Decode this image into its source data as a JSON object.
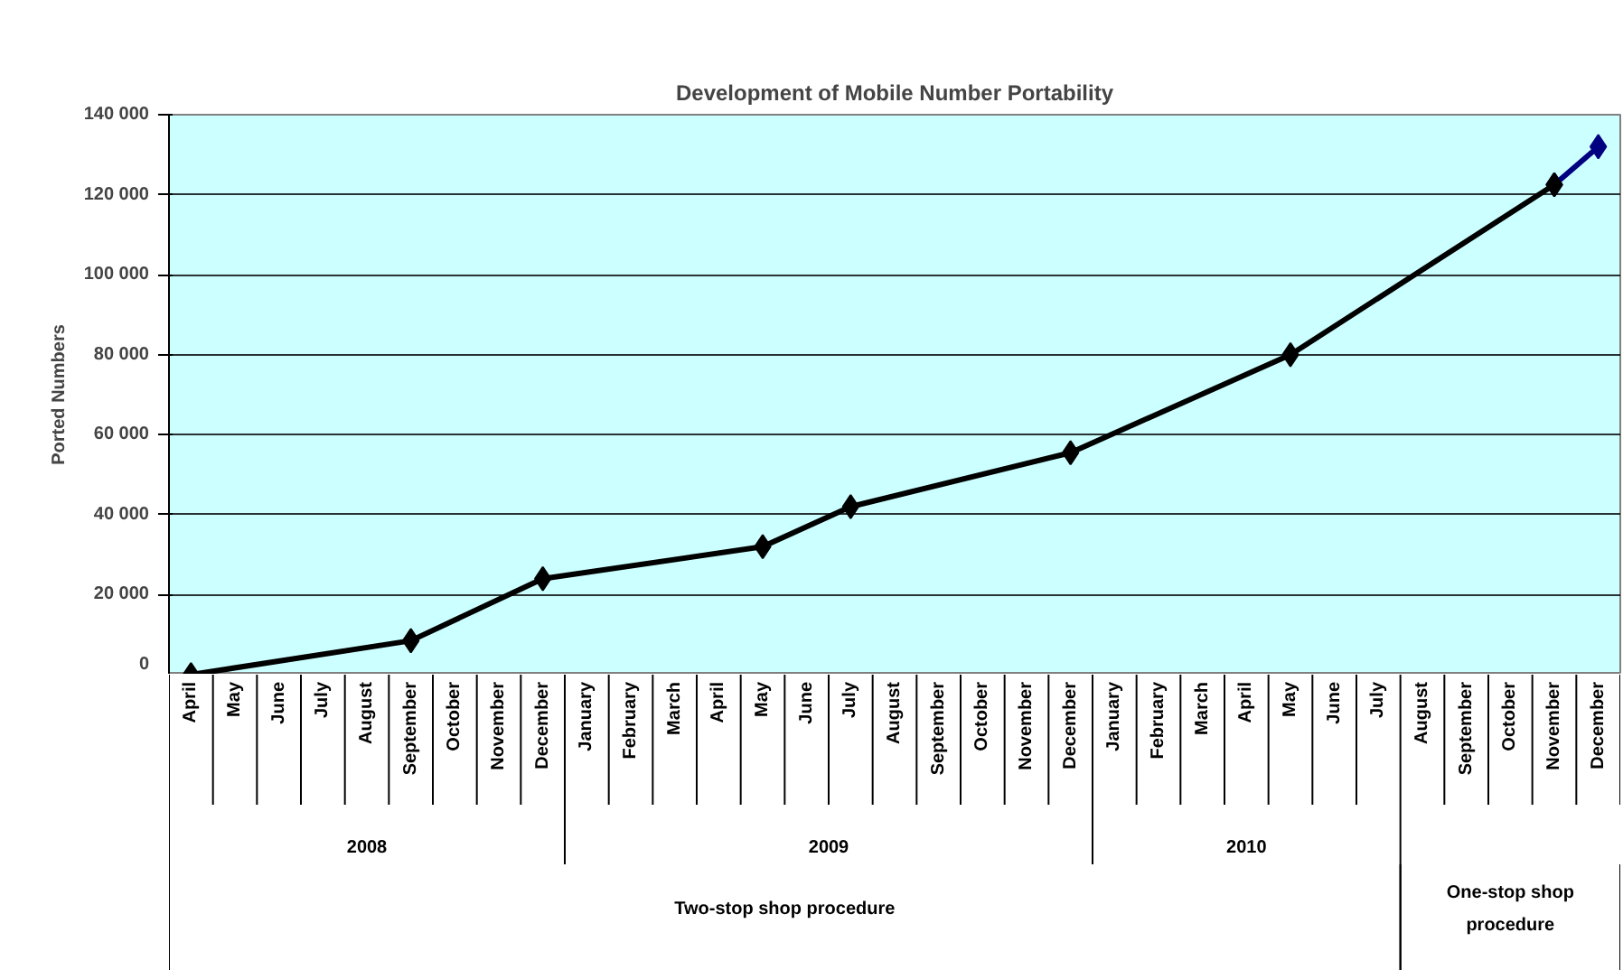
{
  "chart_data": {
    "type": "line",
    "title": "Development of Mobile Number Portability",
    "ylabel": "Ported Numbers",
    "categories": [
      "April",
      "May",
      "June",
      "July",
      "August",
      "September",
      "October",
      "November",
      "December",
      "January",
      "February",
      "March",
      "April",
      "May",
      "June",
      "July",
      "August",
      "September",
      "October",
      "November",
      "December",
      "January",
      "February",
      "March",
      "April",
      "May",
      "June",
      "July",
      "August",
      "September",
      "October",
      "November",
      "December"
    ],
    "series": [
      {
        "color": "#000000",
        "values": [
          0,
          null,
          null,
          null,
          null,
          8500,
          null,
          null,
          24000,
          null,
          null,
          null,
          null,
          32000,
          null,
          42000,
          null,
          null,
          null,
          null,
          55500,
          null,
          null,
          null,
          null,
          80000,
          null,
          null,
          null,
          null,
          null,
          122500,
          null
        ]
      },
      {
        "color": "#000080",
        "values": [
          null,
          null,
          null,
          null,
          null,
          null,
          null,
          null,
          null,
          null,
          null,
          null,
          null,
          null,
          null,
          null,
          null,
          null,
          null,
          null,
          null,
          null,
          null,
          null,
          null,
          null,
          null,
          null,
          null,
          null,
          null,
          122500,
          132000
        ]
      }
    ],
    "ylim": [
      0,
      140000
    ],
    "yticks": [
      0,
      {
        "value": 20000,
        "label": "20 000"
      },
      {
        "value": 40000,
        "label": "40 000"
      },
      {
        "value": 60000,
        "label": "60 000"
      },
      {
        "value": 80000,
        "label": "80 000"
      },
      {
        "value": 100000,
        "label": "100 000"
      },
      {
        "value": 120000,
        "label": "120 000"
      },
      {
        "value": 140000,
        "label": "140 000"
      }
    ],
    "grid": "y",
    "marker": "diamond",
    "line_style": "solid",
    "annotations": [
      "2008",
      "2009",
      "2010",
      "Two-stop shop procedure",
      "One-stop shop procedure"
    ]
  }
}
